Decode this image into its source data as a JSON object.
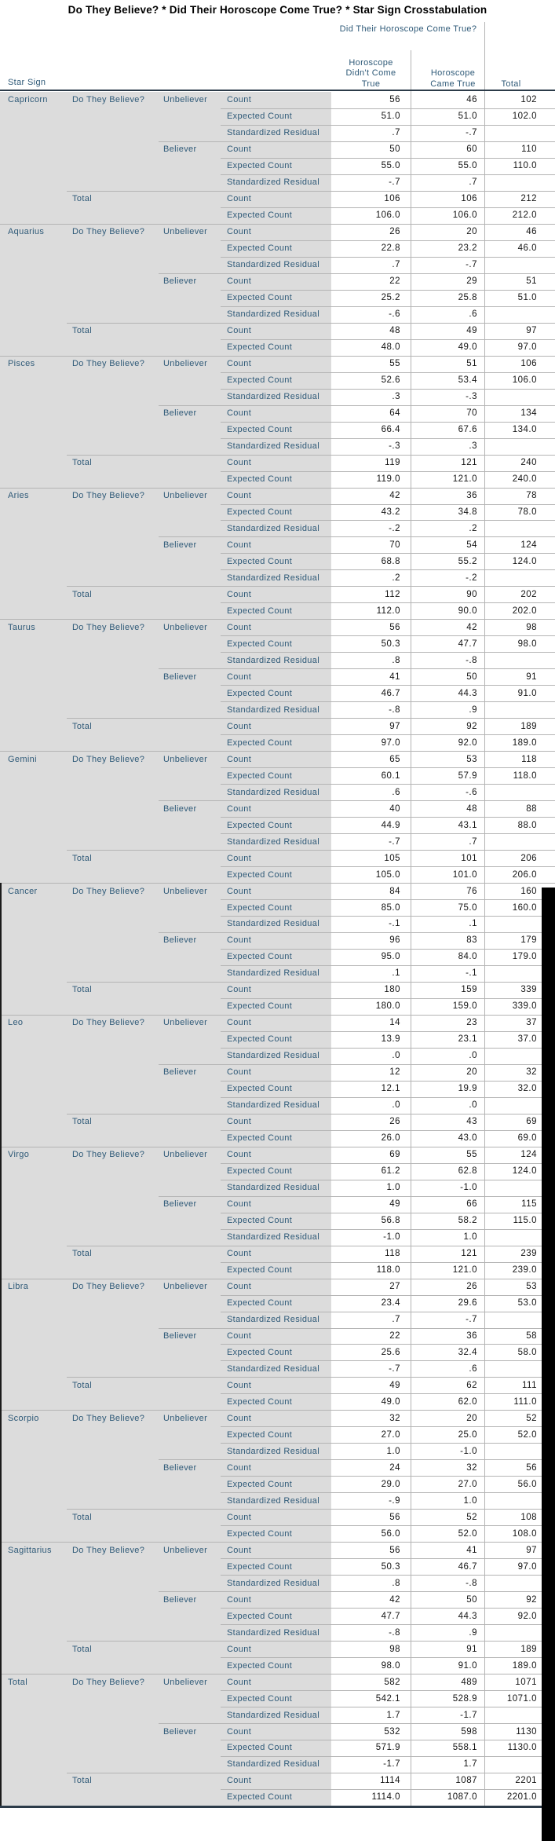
{
  "title": "Do They Believe? * Did Their Horoscope Come True? * Star Sign Crosstabulation",
  "header": {
    "row_dim_label": "Star Sign",
    "col_dim_label": "Did Their Horoscope Come True?",
    "col_labels": [
      "Horoscope Didn't Come True",
      "Horoscope Came True",
      "Total"
    ]
  },
  "row_dims": {
    "believe_label": "Do They Believe?",
    "total_label": "Total"
  },
  "stats": [
    "Count",
    "Expected Count",
    "Standardized Residual"
  ],
  "categories": [
    "Unbeliever",
    "Believer"
  ],
  "colors": {
    "label_text": "#2f5a78",
    "label_background": "#dcdcdc",
    "grid_line": "#b4b4b4",
    "dark_border": "#2c3b49",
    "value_text": "#141414",
    "scrollbar": "#000000"
  },
  "sections": [
    {
      "sign": "Capricorn",
      "unbeliever": {
        "count": [
          "56",
          "46",
          "102"
        ],
        "expected": [
          "51.0",
          "51.0",
          "102.0"
        ],
        "std_residual": [
          ".7",
          "-.7",
          ""
        ]
      },
      "believer": {
        "count": [
          "50",
          "60",
          "110"
        ],
        "expected": [
          "55.0",
          "55.0",
          "110.0"
        ],
        "std_residual": [
          "-.7",
          ".7",
          ""
        ]
      },
      "total": {
        "count": [
          "106",
          "106",
          "212"
        ],
        "expected": [
          "106.0",
          "106.0",
          "212.0"
        ]
      }
    },
    {
      "sign": "Aquarius",
      "unbeliever": {
        "count": [
          "26",
          "20",
          "46"
        ],
        "expected": [
          "22.8",
          "23.2",
          "46.0"
        ],
        "std_residual": [
          ".7",
          "-.7",
          ""
        ]
      },
      "believer": {
        "count": [
          "22",
          "29",
          "51"
        ],
        "expected": [
          "25.2",
          "25.8",
          "51.0"
        ],
        "std_residual": [
          "-.6",
          ".6",
          ""
        ]
      },
      "total": {
        "count": [
          "48",
          "49",
          "97"
        ],
        "expected": [
          "48.0",
          "49.0",
          "97.0"
        ]
      }
    },
    {
      "sign": "Pisces",
      "unbeliever": {
        "count": [
          "55",
          "51",
          "106"
        ],
        "expected": [
          "52.6",
          "53.4",
          "106.0"
        ],
        "std_residual": [
          ".3",
          "-.3",
          ""
        ]
      },
      "believer": {
        "count": [
          "64",
          "70",
          "134"
        ],
        "expected": [
          "66.4",
          "67.6",
          "134.0"
        ],
        "std_residual": [
          "-.3",
          ".3",
          ""
        ]
      },
      "total": {
        "count": [
          "119",
          "121",
          "240"
        ],
        "expected": [
          "119.0",
          "121.0",
          "240.0"
        ]
      }
    },
    {
      "sign": "Aries",
      "unbeliever": {
        "count": [
          "42",
          "36",
          "78"
        ],
        "expected": [
          "43.2",
          "34.8",
          "78.0"
        ],
        "std_residual": [
          "-.2",
          ".2",
          ""
        ]
      },
      "believer": {
        "count": [
          "70",
          "54",
          "124"
        ],
        "expected": [
          "68.8",
          "55.2",
          "124.0"
        ],
        "std_residual": [
          ".2",
          "-.2",
          ""
        ]
      },
      "total": {
        "count": [
          "112",
          "90",
          "202"
        ],
        "expected": [
          "112.0",
          "90.0",
          "202.0"
        ]
      }
    },
    {
      "sign": "Taurus",
      "unbeliever": {
        "count": [
          "56",
          "42",
          "98"
        ],
        "expected": [
          "50.3",
          "47.7",
          "98.0"
        ],
        "std_residual": [
          ".8",
          "-.8",
          ""
        ]
      },
      "believer": {
        "count": [
          "41",
          "50",
          "91"
        ],
        "expected": [
          "46.7",
          "44.3",
          "91.0"
        ],
        "std_residual": [
          "-.8",
          ".9",
          ""
        ]
      },
      "total": {
        "count": [
          "97",
          "92",
          "189"
        ],
        "expected": [
          "97.0",
          "92.0",
          "189.0"
        ]
      }
    },
    {
      "sign": "Gemini",
      "unbeliever": {
        "count": [
          "65",
          "53",
          "118"
        ],
        "expected": [
          "60.1",
          "57.9",
          "118.0"
        ],
        "std_residual": [
          ".6",
          "-.6",
          ""
        ]
      },
      "believer": {
        "count": [
          "40",
          "48",
          "88"
        ],
        "expected": [
          "44.9",
          "43.1",
          "88.0"
        ],
        "std_residual": [
          "-.7",
          ".7",
          ""
        ]
      },
      "total": {
        "count": [
          "105",
          "101",
          "206"
        ],
        "expected": [
          "105.0",
          "101.0",
          "206.0"
        ]
      }
    },
    {
      "sign": "Cancer",
      "unbeliever": {
        "count": [
          "84",
          "76",
          "160"
        ],
        "expected": [
          "85.0",
          "75.0",
          "160.0"
        ],
        "std_residual": [
          "-.1",
          ".1",
          ""
        ]
      },
      "believer": {
        "count": [
          "96",
          "83",
          "179"
        ],
        "expected": [
          "95.0",
          "84.0",
          "179.0"
        ],
        "std_residual": [
          ".1",
          "-.1",
          ""
        ]
      },
      "total": {
        "count": [
          "180",
          "159",
          "339"
        ],
        "expected": [
          "180.0",
          "159.0",
          "339.0"
        ]
      }
    },
    {
      "sign": "Leo",
      "unbeliever": {
        "count": [
          "14",
          "23",
          "37"
        ],
        "expected": [
          "13.9",
          "23.1",
          "37.0"
        ],
        "std_residual": [
          ".0",
          ".0",
          ""
        ]
      },
      "believer": {
        "count": [
          "12",
          "20",
          "32"
        ],
        "expected": [
          "12.1",
          "19.9",
          "32.0"
        ],
        "std_residual": [
          ".0",
          ".0",
          ""
        ]
      },
      "total": {
        "count": [
          "26",
          "43",
          "69"
        ],
        "expected": [
          "26.0",
          "43.0",
          "69.0"
        ]
      }
    },
    {
      "sign": "Virgo",
      "unbeliever": {
        "count": [
          "69",
          "55",
          "124"
        ],
        "expected": [
          "61.2",
          "62.8",
          "124.0"
        ],
        "std_residual": [
          "1.0",
          "-1.0",
          ""
        ]
      },
      "believer": {
        "count": [
          "49",
          "66",
          "115"
        ],
        "expected": [
          "56.8",
          "58.2",
          "115.0"
        ],
        "std_residual": [
          "-1.0",
          "1.0",
          ""
        ]
      },
      "total": {
        "count": [
          "118",
          "121",
          "239"
        ],
        "expected": [
          "118.0",
          "121.0",
          "239.0"
        ]
      }
    },
    {
      "sign": "Libra",
      "unbeliever": {
        "count": [
          "27",
          "26",
          "53"
        ],
        "expected": [
          "23.4",
          "29.6",
          "53.0"
        ],
        "std_residual": [
          ".7",
          "-.7",
          ""
        ]
      },
      "believer": {
        "count": [
          "22",
          "36",
          "58"
        ],
        "expected": [
          "25.6",
          "32.4",
          "58.0"
        ],
        "std_residual": [
          "-.7",
          ".6",
          ""
        ]
      },
      "total": {
        "count": [
          "49",
          "62",
          "111"
        ],
        "expected": [
          "49.0",
          "62.0",
          "111.0"
        ]
      }
    },
    {
      "sign": "Scorpio",
      "unbeliever": {
        "count": [
          "32",
          "20",
          "52"
        ],
        "expected": [
          "27.0",
          "25.0",
          "52.0"
        ],
        "std_residual": [
          "1.0",
          "-1.0",
          ""
        ]
      },
      "believer": {
        "count": [
          "24",
          "32",
          "56"
        ],
        "expected": [
          "29.0",
          "27.0",
          "56.0"
        ],
        "std_residual": [
          "-.9",
          "1.0",
          ""
        ]
      },
      "total": {
        "count": [
          "56",
          "52",
          "108"
        ],
        "expected": [
          "56.0",
          "52.0",
          "108.0"
        ]
      }
    },
    {
      "sign": "Sagittarius",
      "unbeliever": {
        "count": [
          "56",
          "41",
          "97"
        ],
        "expected": [
          "50.3",
          "46.7",
          "97.0"
        ],
        "std_residual": [
          ".8",
          "-.8",
          ""
        ]
      },
      "believer": {
        "count": [
          "42",
          "50",
          "92"
        ],
        "expected": [
          "47.7",
          "44.3",
          "92.0"
        ],
        "std_residual": [
          "-.8",
          ".9",
          ""
        ]
      },
      "total": {
        "count": [
          "98",
          "91",
          "189"
        ],
        "expected": [
          "98.0",
          "91.0",
          "189.0"
        ]
      }
    },
    {
      "sign": "Total",
      "unbeliever": {
        "count": [
          "582",
          "489",
          "1071"
        ],
        "expected": [
          "542.1",
          "528.9",
          "1071.0"
        ],
        "std_residual": [
          "1.7",
          "-1.7",
          ""
        ]
      },
      "believer": {
        "count": [
          "532",
          "598",
          "1130"
        ],
        "expected": [
          "571.9",
          "558.1",
          "1130.0"
        ],
        "std_residual": [
          "-1.7",
          "1.7",
          ""
        ]
      },
      "total": {
        "count": [
          "1114",
          "1087",
          "2201"
        ],
        "expected": [
          "1114.0",
          "1087.0",
          "2201.0"
        ]
      }
    }
  ]
}
